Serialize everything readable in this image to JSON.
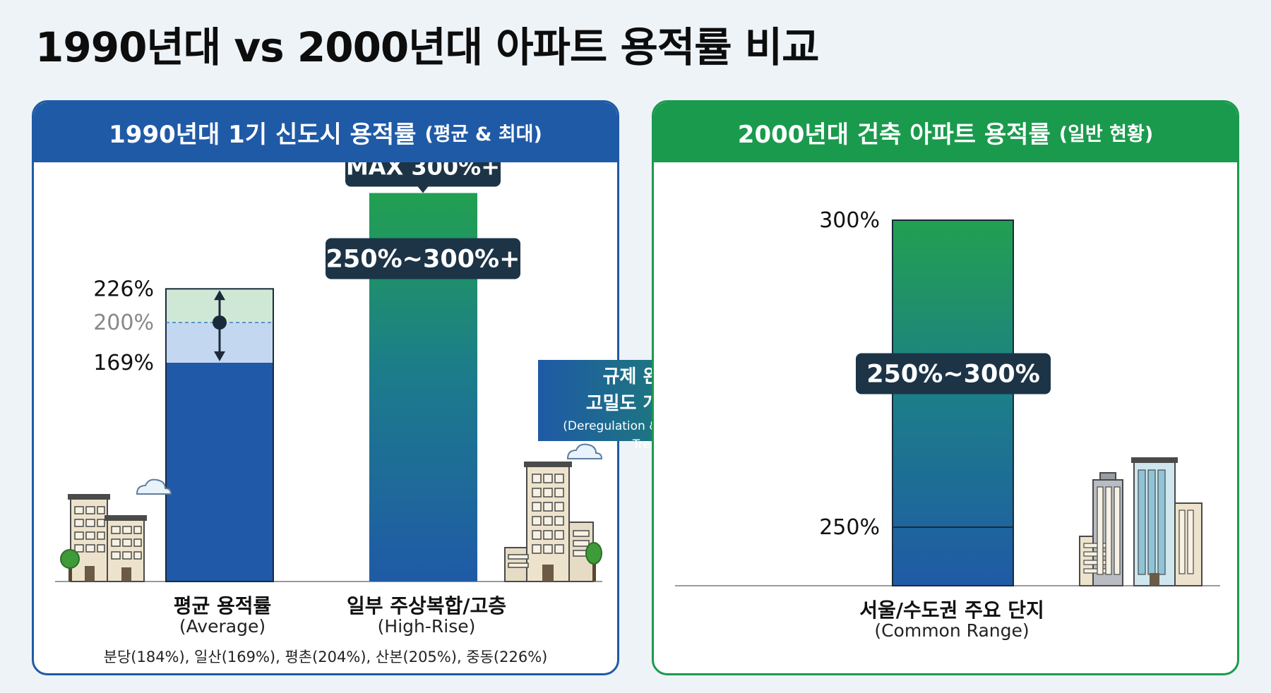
{
  "title": "1990년대 vs 2000년대 아파트 용적률 비교",
  "colors": {
    "blue": "#1f5aa6",
    "green": "#1a9a4d",
    "label_dark": "#1d3447"
  },
  "left_panel": {
    "header": "1990년대 1기 신도시 용적률",
    "header_paren": "(평균 & 최대)",
    "bar1_label": "평균 용적률",
    "bar1_sub": "(Average)",
    "bar2_label": "일부 주상복합/고층",
    "bar2_sub": "(High-Rise)",
    "note": "분당(184%), 일산(169%), 평촌(204%), 산본(205%), 중동(226%)",
    "icons": [
      "building-icon",
      "cloud-icon",
      "tree-icon"
    ]
  },
  "arrow": {
    "line1": "규제 완화 및",
    "line2": "고밀도 개발 추세",
    "line3": "(Deregulation & High-Density Trend)"
  },
  "right_panel": {
    "header": "2000년대 건축 아파트 용적률",
    "header_paren": "(일반 현황)",
    "bar_label": "서울/수도권 주요 단지",
    "bar_sub": "(Common Range)",
    "icons": [
      "city-buildings-icon"
    ]
  },
  "chart_data": [
    {
      "type": "bar",
      "categories": [
        "평균 용적률",
        "일부 주상복합/고층"
      ],
      "unit": "%",
      "bars": [
        {
          "category": "평균 용적률",
          "min": 169,
          "mid": 200,
          "max": 226,
          "tick_labels": [
            "226%",
            "200%",
            "169%"
          ]
        },
        {
          "category": "일부 주상복합/고층",
          "min": 250,
          "max": 300,
          "range_label": "250%~300%+",
          "max_label": "MAX 300%+"
        }
      ]
    },
    {
      "type": "bar",
      "categories": [
        "서울/수도권 주요 단지"
      ],
      "unit": "%",
      "bars": [
        {
          "category": "서울/수도권 주요 단지",
          "min": 250,
          "max": 300,
          "range_label": "250%~300%",
          "tick_labels": [
            "300%",
            "250%"
          ]
        }
      ]
    }
  ]
}
